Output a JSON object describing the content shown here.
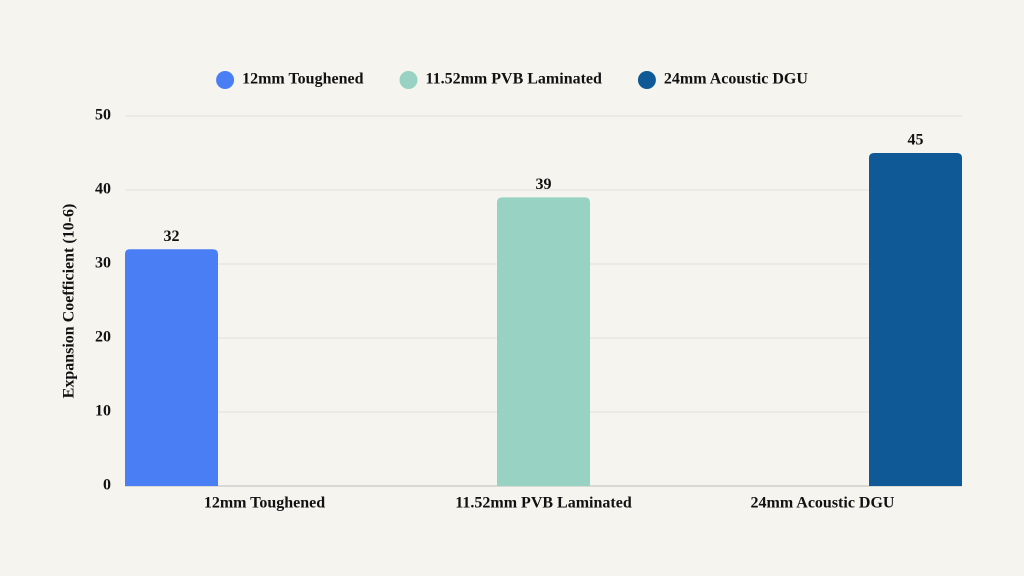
{
  "chart_data": {
    "type": "bar",
    "categories": [
      "12mm Toughened",
      "11.52mm PVB Laminated",
      "24mm Acoustic DGU"
    ],
    "series": [
      {
        "name": "12mm Toughened",
        "color": "#4a7ef5",
        "values": [
          32,
          null,
          null
        ]
      },
      {
        "name": "11.52mm PVB Laminated",
        "color": "#98d2c3",
        "values": [
          null,
          39,
          null
        ]
      },
      {
        "name": "24mm Acoustic DGU",
        "color": "#0f5a96",
        "values": [
          null,
          null,
          45
        ]
      }
    ],
    "y_label": "Expansion Coefficient (10-6)",
    "ylim": [
      0,
      50
    ],
    "yticks": [
      0,
      10,
      20,
      30,
      40,
      50
    ],
    "grid": true,
    "legend": "top"
  }
}
